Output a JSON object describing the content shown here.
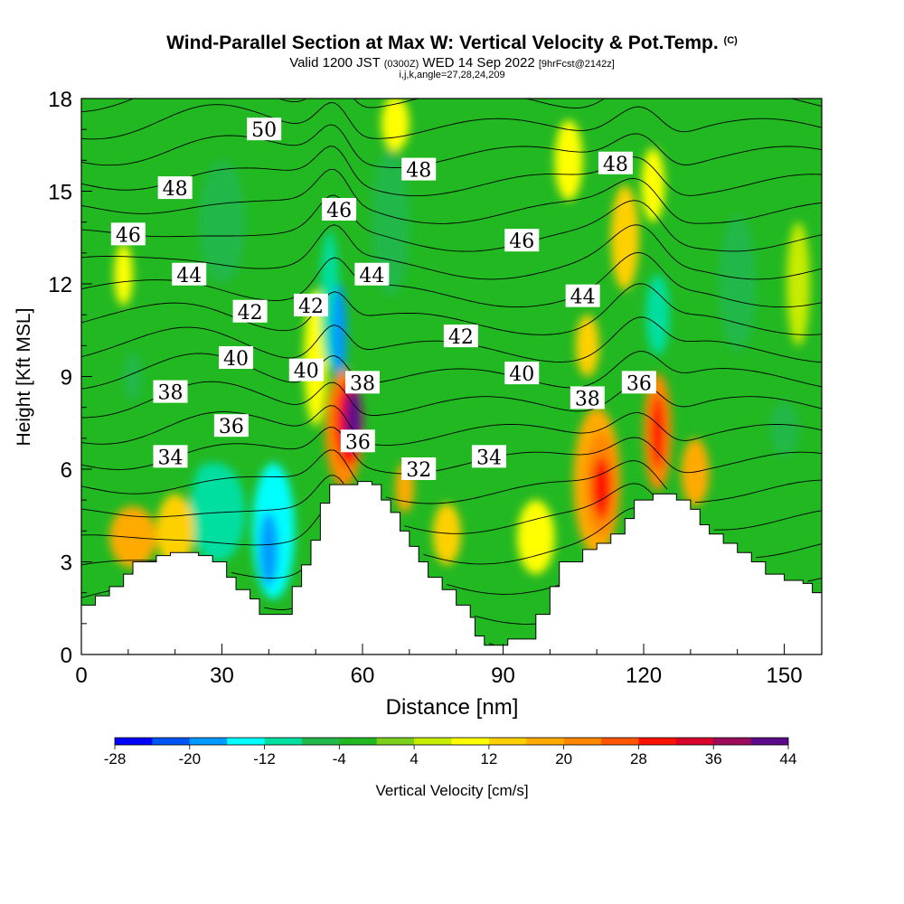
{
  "header": {
    "title": "Wind-Parallel Section at Max W: Vertical Velocity & Pot.Temp.",
    "copyright": "(C)",
    "valid_prefix": "Valid 1200 JST",
    "valid_zulu": "(0300Z)",
    "valid_date": "WED 14 Sep 2022",
    "forecast": "[9hrFcst@2142z]",
    "indices": "i,j,k,angle=27,28,24,209"
  },
  "chart_data": {
    "type": "heatmap",
    "title": "Wind-Parallel Section at Max W: Vertical Velocity & Pot.Temp.",
    "xlabel": "Distance [nm]",
    "ylabel": "Height [Kft MSL]",
    "xlim": [
      0,
      158
    ],
    "ylim": [
      0,
      18
    ],
    "x_ticks": [
      0,
      30,
      60,
      90,
      120,
      150
    ],
    "y_ticks": [
      0,
      3,
      6,
      9,
      12,
      15,
      18
    ],
    "grid": false,
    "colorbar": {
      "label": "Vertical Velocity [cm/s]",
      "boundaries": [
        -28,
        -24,
        -20,
        -16,
        -12,
        -8,
        -4,
        0,
        4,
        8,
        12,
        16,
        20,
        24,
        28,
        32,
        36,
        40,
        44
      ],
      "tick_labels": [
        -28,
        -20,
        -12,
        -4,
        4,
        12,
        20,
        28,
        36,
        44
      ],
      "colors": [
        "#0000ff",
        "#0055f5",
        "#0099ff",
        "#00ffff",
        "#00dfa0",
        "#22b84a",
        "#22b822",
        "#7ccf1a",
        "#c8ec00",
        "#ffff00",
        "#ffd000",
        "#ffaa00",
        "#ff8800",
        "#ff5500",
        "#ff1100",
        "#d9002a",
        "#9c0a5a",
        "#5a0a8a"
      ]
    },
    "terrain": [
      [
        0,
        1.6
      ],
      [
        3,
        1.6
      ],
      [
        3,
        1.9
      ],
      [
        6,
        1.9
      ],
      [
        6,
        2.2
      ],
      [
        9,
        2.2
      ],
      [
        9,
        2.6
      ],
      [
        11,
        2.6
      ],
      [
        11,
        3.0
      ],
      [
        16,
        3.0
      ],
      [
        16,
        3.2
      ],
      [
        19,
        3.2
      ],
      [
        19,
        3.3
      ],
      [
        25,
        3.3
      ],
      [
        25,
        3.2
      ],
      [
        28,
        3.2
      ],
      [
        28,
        3.0
      ],
      [
        31,
        3.0
      ],
      [
        31,
        2.5
      ],
      [
        33,
        2.5
      ],
      [
        33,
        2.1
      ],
      [
        36,
        2.1
      ],
      [
        36,
        1.8
      ],
      [
        38,
        1.8
      ],
      [
        38,
        1.3
      ],
      [
        45,
        1.3
      ],
      [
        45,
        2.2
      ],
      [
        47,
        2.2
      ],
      [
        47,
        2.9
      ],
      [
        49,
        2.9
      ],
      [
        49,
        3.7
      ],
      [
        51,
        3.7
      ],
      [
        51,
        4.9
      ],
      [
        53,
        4.9
      ],
      [
        53,
        5.5
      ],
      [
        59,
        5.5
      ],
      [
        59,
        5.6
      ],
      [
        62,
        5.6
      ],
      [
        62,
        5.5
      ],
      [
        64,
        5.5
      ],
      [
        64,
        5.0
      ],
      [
        66,
        5.0
      ],
      [
        66,
        4.6
      ],
      [
        68,
        4.6
      ],
      [
        68,
        4.0
      ],
      [
        70,
        4.0
      ],
      [
        70,
        3.5
      ],
      [
        72,
        3.5
      ],
      [
        72,
        3.0
      ],
      [
        74,
        3.0
      ],
      [
        74,
        2.5
      ],
      [
        77,
        2.5
      ],
      [
        77,
        2.1
      ],
      [
        80,
        2.1
      ],
      [
        80,
        1.6
      ],
      [
        83,
        1.6
      ],
      [
        83,
        1.2
      ],
      [
        84,
        1.2
      ],
      [
        84,
        0.6
      ],
      [
        86,
        0.6
      ],
      [
        86,
        0.3
      ],
      [
        88,
        0.3
      ],
      [
        88,
        0.3
      ],
      [
        91,
        0.3
      ],
      [
        91,
        0.5
      ],
      [
        97,
        0.5
      ],
      [
        97,
        1.3
      ],
      [
        100,
        1.3
      ],
      [
        100,
        2.2
      ],
      [
        102,
        2.2
      ],
      [
        102,
        3.0
      ],
      [
        107,
        3.0
      ],
      [
        107,
        3.4
      ],
      [
        110,
        3.4
      ],
      [
        110,
        3.6
      ],
      [
        113,
        3.6
      ],
      [
        113,
        3.9
      ],
      [
        116,
        3.9
      ],
      [
        116,
        4.4
      ],
      [
        118,
        4.4
      ],
      [
        118,
        5.0
      ],
      [
        122,
        5.0
      ],
      [
        122,
        5.2
      ],
      [
        127,
        5.2
      ],
      [
        127,
        5.0
      ],
      [
        130,
        5.0
      ],
      [
        130,
        4.7
      ],
      [
        132,
        4.7
      ],
      [
        132,
        4.2
      ],
      [
        134,
        4.2
      ],
      [
        134,
        3.9
      ],
      [
        137,
        3.9
      ],
      [
        137,
        3.6
      ],
      [
        140,
        3.6
      ],
      [
        140,
        3.3
      ],
      [
        143,
        3.3
      ],
      [
        143,
        3.0
      ],
      [
        146,
        3.0
      ],
      [
        146,
        2.6
      ],
      [
        150,
        2.6
      ],
      [
        150,
        2.4
      ],
      [
        154,
        2.4
      ],
      [
        154,
        2.3
      ],
      [
        156,
        2.3
      ],
      [
        156,
        2.0
      ],
      [
        158,
        2.0
      ]
    ],
    "w_features": [
      {
        "x": 29,
        "y": 4.6,
        "rx": 6,
        "ry": 1.6,
        "w": -12
      },
      {
        "x": 41,
        "y": 4.0,
        "rx": 4.5,
        "ry": 2.2,
        "w": -14
      },
      {
        "x": 40,
        "y": 3.4,
        "rx": 2,
        "ry": 1.2,
        "w": -20
      },
      {
        "x": 27,
        "y": 5.4,
        "rx": 3,
        "ry": 0.8,
        "w": -10
      },
      {
        "x": 11,
        "y": 3.8,
        "rx": 5,
        "ry": 1.0,
        "w": 16
      },
      {
        "x": 20,
        "y": 4.0,
        "rx": 4,
        "ry": 1.2,
        "w": 12
      },
      {
        "x": 55,
        "y": 10.4,
        "rx": 1.6,
        "ry": 1.6,
        "w": -20
      },
      {
        "x": 53,
        "y": 11.5,
        "rx": 2,
        "ry": 2.2,
        "w": -10
      },
      {
        "x": 56,
        "y": 7.3,
        "rx": 4,
        "ry": 1.9,
        "w": 20
      },
      {
        "x": 57,
        "y": 7.5,
        "rx": 3,
        "ry": 1.4,
        "w": 30
      },
      {
        "x": 58,
        "y": 7.6,
        "rx": 1.8,
        "ry": 1.0,
        "w": 40
      },
      {
        "x": 50,
        "y": 9.6,
        "rx": 2.5,
        "ry": 2.2,
        "w": 8
      },
      {
        "x": 69,
        "y": 5.4,
        "rx": 2,
        "ry": 0.8,
        "w": 16
      },
      {
        "x": 78,
        "y": 3.9,
        "rx": 3,
        "ry": 1.0,
        "w": 12
      },
      {
        "x": 97,
        "y": 3.8,
        "rx": 4,
        "ry": 1.2,
        "w": 8
      },
      {
        "x": 110,
        "y": 5.6,
        "rx": 5,
        "ry": 2.4,
        "w": 16
      },
      {
        "x": 111,
        "y": 5.5,
        "rx": 3.5,
        "ry": 1.7,
        "w": 22
      },
      {
        "x": 111,
        "y": 5.4,
        "rx": 2,
        "ry": 1.0,
        "w": 28
      },
      {
        "x": 123,
        "y": 7.2,
        "rx": 3,
        "ry": 1.9,
        "w": 20
      },
      {
        "x": 123,
        "y": 7.2,
        "rx": 1.5,
        "ry": 1.2,
        "w": 30
      },
      {
        "x": 123,
        "y": 11.0,
        "rx": 2.5,
        "ry": 1.3,
        "w": -10
      },
      {
        "x": 108,
        "y": 10.0,
        "rx": 2.5,
        "ry": 1.0,
        "w": 12
      },
      {
        "x": 116,
        "y": 13.5,
        "rx": 3,
        "ry": 1.7,
        "w": 12
      },
      {
        "x": 131,
        "y": 5.9,
        "rx": 3,
        "ry": 1.1,
        "w": 16
      },
      {
        "x": 122,
        "y": 15.2,
        "rx": 2.5,
        "ry": 1.2,
        "w": 10
      },
      {
        "x": 104,
        "y": 16.0,
        "rx": 3,
        "ry": 1.3,
        "w": 8
      },
      {
        "x": 9,
        "y": 12.3,
        "rx": 2,
        "ry": 1.0,
        "w": 10
      },
      {
        "x": 11,
        "y": 9.0,
        "rx": 2,
        "ry": 0.8,
        "w": -8
      },
      {
        "x": 66,
        "y": 14.0,
        "rx": 4,
        "ry": 2.4,
        "w": -6
      },
      {
        "x": 140,
        "y": 12.0,
        "rx": 4,
        "ry": 2.2,
        "w": -6
      },
      {
        "x": 153,
        "y": 12.0,
        "rx": 2.5,
        "ry": 2.0,
        "w": 6
      },
      {
        "x": 30,
        "y": 14.0,
        "rx": 5,
        "ry": 2.0,
        "w": -6
      },
      {
        "x": 150,
        "y": 7.3,
        "rx": 3,
        "ry": 0.9,
        "w": -6
      },
      {
        "x": 67,
        "y": 17.2,
        "rx": 3,
        "ry": 0.9,
        "w": 8
      }
    ],
    "theta_contours": {
      "interval": 1,
      "levels_min": 30,
      "levels_max": 51,
      "labels": [
        {
          "x": 39,
          "y": 17.0,
          "text": "50"
        },
        {
          "x": 20,
          "y": 15.1,
          "text": "48"
        },
        {
          "x": 72,
          "y": 15.7,
          "text": "48"
        },
        {
          "x": 114,
          "y": 15.9,
          "text": "48"
        },
        {
          "x": 10,
          "y": 13.6,
          "text": "46"
        },
        {
          "x": 55,
          "y": 14.4,
          "text": "46"
        },
        {
          "x": 94,
          "y": 13.4,
          "text": "46"
        },
        {
          "x": 23,
          "y": 12.3,
          "text": "44"
        },
        {
          "x": 62,
          "y": 12.3,
          "text": "44"
        },
        {
          "x": 107,
          "y": 11.6,
          "text": "44"
        },
        {
          "x": 36,
          "y": 11.1,
          "text": "42"
        },
        {
          "x": 49,
          "y": 11.3,
          "text": "42"
        },
        {
          "x": 81,
          "y": 10.3,
          "text": "42"
        },
        {
          "x": 33,
          "y": 9.6,
          "text": "40"
        },
        {
          "x": 48,
          "y": 9.2,
          "text": "40"
        },
        {
          "x": 94,
          "y": 9.1,
          "text": "40"
        },
        {
          "x": 19,
          "y": 8.5,
          "text": "38"
        },
        {
          "x": 60,
          "y": 8.8,
          "text": "38"
        },
        {
          "x": 108,
          "y": 8.3,
          "text": "38"
        },
        {
          "x": 32,
          "y": 7.4,
          "text": "36"
        },
        {
          "x": 59,
          "y": 6.9,
          "text": "36"
        },
        {
          "x": 119,
          "y": 8.8,
          "text": "36"
        },
        {
          "x": 19,
          "y": 6.4,
          "text": "34"
        },
        {
          "x": 87,
          "y": 6.4,
          "text": "34"
        },
        {
          "x": 72,
          "y": 6.0,
          "text": "32"
        }
      ]
    }
  }
}
